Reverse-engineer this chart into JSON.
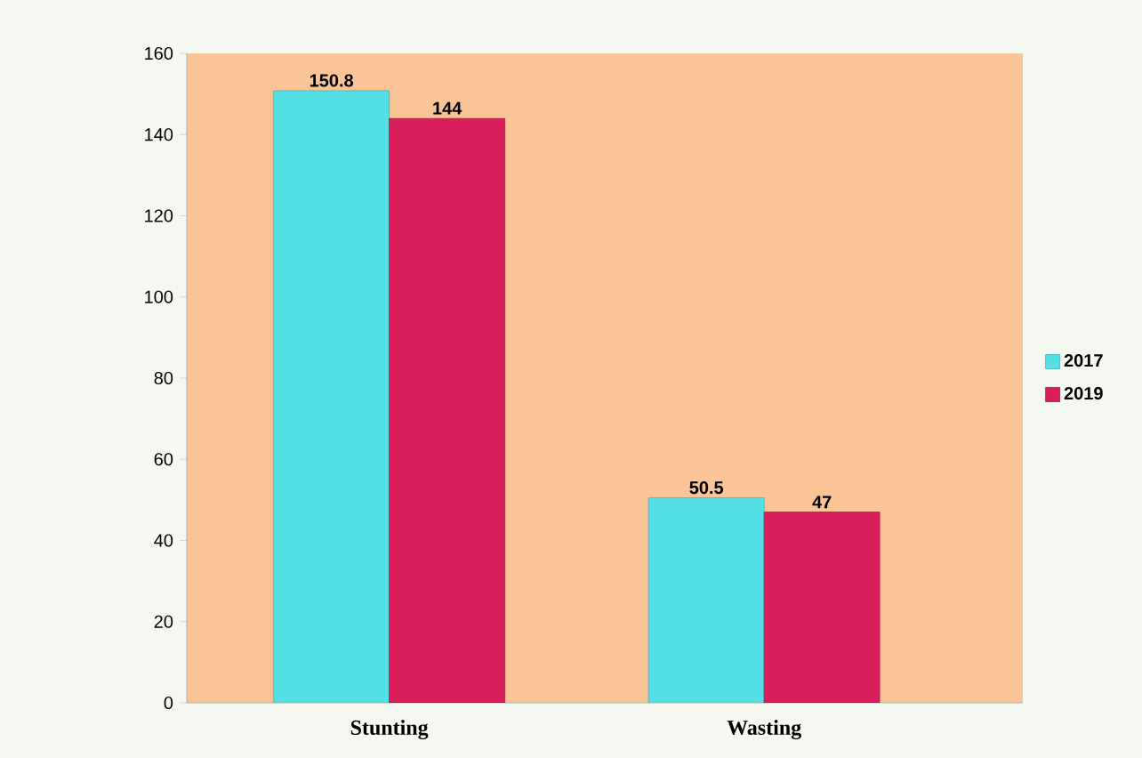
{
  "chart_data": {
    "type": "bar",
    "categories": [
      "Stunting",
      "Wasting"
    ],
    "series": [
      {
        "name": "2017",
        "color": "#55e0e6",
        "values": [
          150.8,
          50.5
        ]
      },
      {
        "name": "2019",
        "color": "#d81e5b",
        "values": [
          144,
          47
        ]
      }
    ],
    "ylim": [
      0,
      160
    ],
    "yticks": [
      0,
      20,
      40,
      60,
      80,
      100,
      120,
      140,
      160
    ],
    "data_labels": true,
    "legend": "right",
    "grid": false
  }
}
